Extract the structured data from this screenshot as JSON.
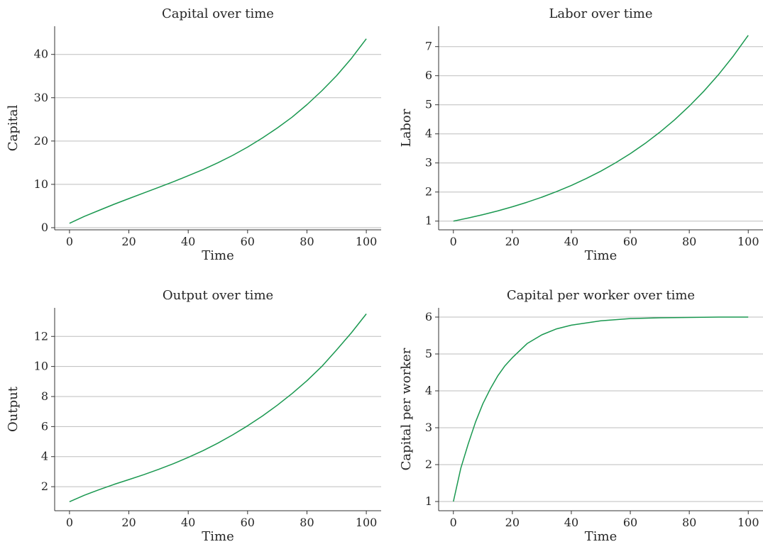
{
  "chart_data": [
    {
      "type": "line",
      "title": "Capital over time",
      "xlabel": "Time",
      "ylabel": "Capital",
      "xlim": [
        -5,
        105
      ],
      "ylim": [
        -0.5,
        46.5
      ],
      "xticks": [
        0,
        20,
        40,
        60,
        80,
        100
      ],
      "yticks": [
        0,
        10,
        20,
        30,
        40
      ],
      "grid": "horizontal",
      "series": [
        {
          "color": "#1a9850",
          "x": [
            0,
            5,
            10,
            15,
            20,
            25,
            30,
            35,
            40,
            45,
            50,
            55,
            60,
            65,
            70,
            75,
            80,
            85,
            90,
            95,
            100
          ],
          "y": [
            1.0,
            2.6,
            4.0,
            5.4,
            6.7,
            8.0,
            9.3,
            10.6,
            12.0,
            13.4,
            15.0,
            16.7,
            18.6,
            20.7,
            23.0,
            25.5,
            28.4,
            31.6,
            35.1,
            39.1,
            43.6
          ]
        }
      ]
    },
    {
      "type": "line",
      "title": "Labor over time",
      "xlabel": "Time",
      "ylabel": "Labor",
      "xlim": [
        -5,
        105
      ],
      "ylim": [
        0.7,
        7.7
      ],
      "xticks": [
        0,
        20,
        40,
        60,
        80,
        100
      ],
      "yticks": [
        1,
        2,
        3,
        4,
        5,
        6,
        7
      ],
      "grid": "horizontal",
      "series": [
        {
          "color": "#1a9850",
          "x": [
            0,
            5,
            10,
            15,
            20,
            25,
            30,
            35,
            40,
            45,
            50,
            55,
            60,
            65,
            70,
            75,
            80,
            85,
            90,
            95,
            100
          ],
          "y": [
            1.0,
            1.105,
            1.221,
            1.35,
            1.492,
            1.649,
            1.822,
            2.014,
            2.226,
            2.46,
            2.718,
            3.004,
            3.32,
            3.669,
            4.055,
            4.482,
            4.953,
            5.474,
            6.05,
            6.686,
            7.389
          ]
        }
      ]
    },
    {
      "type": "line",
      "title": "Output over time",
      "xlabel": "Time",
      "ylabel": "Output",
      "xlim": [
        -5,
        105
      ],
      "ylim": [
        0.4,
        13.9
      ],
      "xticks": [
        0,
        20,
        40,
        60,
        80,
        100
      ],
      "yticks": [
        2,
        4,
        6,
        8,
        10,
        12
      ],
      "grid": "horizontal",
      "series": [
        {
          "color": "#1a9850",
          "x": [
            0,
            5,
            10,
            15,
            20,
            25,
            30,
            35,
            40,
            45,
            50,
            55,
            60,
            65,
            70,
            75,
            80,
            85,
            90,
            95,
            100
          ],
          "y": [
            1.0,
            1.43,
            1.8,
            2.15,
            2.47,
            2.8,
            3.15,
            3.53,
            3.95,
            4.4,
            4.9,
            5.45,
            6.05,
            6.7,
            7.42,
            8.2,
            9.05,
            10.0,
            11.1,
            12.25,
            13.5
          ]
        }
      ]
    },
    {
      "type": "line",
      "title": "Capital per worker over time",
      "xlabel": "Time",
      "ylabel": "Capital per worker",
      "xlim": [
        -5,
        105
      ],
      "ylim": [
        0.75,
        6.25
      ],
      "xticks": [
        0,
        20,
        40,
        60,
        80,
        100
      ],
      "yticks": [
        1,
        2,
        3,
        4,
        5,
        6
      ],
      "grid": "horizontal",
      "series": [
        {
          "color": "#1a9850",
          "x": [
            0,
            2.5,
            5,
            7.5,
            10,
            12.5,
            15,
            17.5,
            20,
            25,
            30,
            35,
            40,
            50,
            60,
            70,
            80,
            90,
            100
          ],
          "y": [
            1.0,
            1.9,
            2.55,
            3.15,
            3.65,
            4.05,
            4.4,
            4.68,
            4.9,
            5.28,
            5.52,
            5.68,
            5.78,
            5.9,
            5.96,
            5.98,
            5.99,
            6.0,
            6.0
          ]
        }
      ]
    }
  ]
}
